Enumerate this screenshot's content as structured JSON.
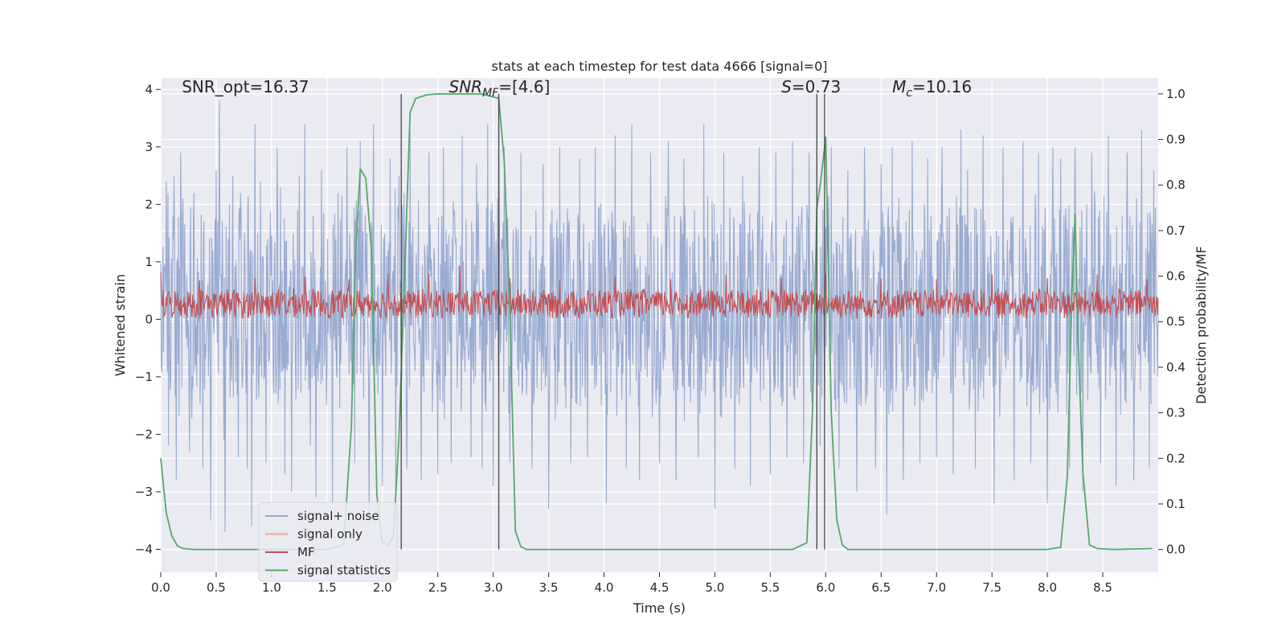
{
  "chart_data": {
    "type": "line",
    "title": "stats at each timestep for test data 4666 [signal=0]",
    "xlabel": "Time (s)",
    "ylabel_left": "Whitened strain",
    "ylabel_right": "Detection probability/MF",
    "xlim": [
      0.0,
      9.0
    ],
    "ylim_left": [
      -4.4,
      4.2
    ],
    "ylim_right": [
      -0.05,
      1.035
    ],
    "x_ticks": [
      0.0,
      0.5,
      1.0,
      1.5,
      2.0,
      2.5,
      3.0,
      3.5,
      4.0,
      4.5,
      5.0,
      5.5,
      6.0,
      6.5,
      7.0,
      7.5,
      8.0,
      8.5
    ],
    "x_tick_labels": [
      "0.0",
      "0.5",
      "1.0",
      "1.5",
      "2.0",
      "2.5",
      "3.0",
      "3.5",
      "4.0",
      "4.5",
      "5.0",
      "5.5",
      "6.0",
      "6.5",
      "7.0",
      "7.5",
      "8.0",
      "8.5"
    ],
    "y_left_ticks": [
      -4,
      -3,
      -2,
      -1,
      0,
      1,
      2,
      3,
      4
    ],
    "y_left_tick_labels": [
      "−4",
      "−3",
      "−2",
      "−1",
      "0",
      "1",
      "2",
      "3",
      "4"
    ],
    "y_right_ticks": [
      0.0,
      0.1,
      0.2,
      0.3,
      0.4,
      0.5,
      0.6,
      0.7,
      0.8,
      0.9,
      1.0
    ],
    "y_right_tick_labels": [
      "0.0",
      "0.1",
      "0.2",
      "0.3",
      "0.4",
      "0.5",
      "0.6",
      "0.7",
      "0.8",
      "0.9",
      "1.0"
    ],
    "annotations": [
      {
        "text": "SNR_opt=16.37",
        "x": 0.19,
        "y_right": 1.0
      },
      {
        "text": "SNR_MF=[4.6]",
        "x": 2.6,
        "y_right": 1.0
      },
      {
        "text": "S=0.73",
        "x": 5.6,
        "y_right": 1.0
      },
      {
        "text": "M_c=10.16",
        "x": 6.6,
        "y_right": 1.0
      }
    ],
    "vertical_lines": [
      2.17,
      3.05,
      5.92,
      5.99
    ],
    "vertical_line_range_right": [
      0.0,
      1.0
    ],
    "legend": {
      "location": "lower-left",
      "entries": [
        {
          "label": "signal+ noise",
          "color": "#98abd0"
        },
        {
          "label": "signal only",
          "color": "#f0a98c"
        },
        {
          "label": "MF",
          "color": "#c44e52"
        },
        {
          "label": "signal statistics",
          "color": "#55a868"
        }
      ]
    },
    "series": [
      {
        "name": "signal+ noise",
        "axis": "left",
        "kind": "noise-band",
        "color": "#98abd0",
        "x_range": [
          0.0,
          9.0
        ],
        "typical_range": [
          -1.8,
          2.3
        ],
        "peaks_max": [
          {
            "x": 0.05,
            "y": 2.4
          },
          {
            "x": 0.07,
            "y": -2.2
          },
          {
            "x": 0.12,
            "y": 2.5
          },
          {
            "x": 0.14,
            "y": -2.8
          },
          {
            "x": 0.18,
            "y": 2.9
          },
          {
            "x": 0.2,
            "y": 2.1
          },
          {
            "x": 0.26,
            "y": -2.3
          },
          {
            "x": 0.3,
            "y": 2.2
          },
          {
            "x": 0.38,
            "y": -2.6
          },
          {
            "x": 0.45,
            "y": -3.5
          },
          {
            "x": 0.5,
            "y": 2.6
          },
          {
            "x": 0.53,
            "y": 3.8
          },
          {
            "x": 0.57,
            "y": -2.1
          },
          {
            "x": 0.58,
            "y": -3.7
          },
          {
            "x": 0.65,
            "y": 2.5
          },
          {
            "x": 0.7,
            "y": -2.4
          },
          {
            "x": 0.72,
            "y": 2.2
          },
          {
            "x": 0.78,
            "y": -2.6
          },
          {
            "x": 0.82,
            "y": -3.6
          },
          {
            "x": 0.85,
            "y": 3.4
          },
          {
            "x": 0.9,
            "y": 2.4
          },
          {
            "x": 0.95,
            "y": -2.5
          },
          {
            "x": 1.05,
            "y": 3.0
          },
          {
            "x": 1.08,
            "y": 2.3
          },
          {
            "x": 1.12,
            "y": -2.7
          },
          {
            "x": 1.18,
            "y": -3.0
          },
          {
            "x": 1.25,
            "y": 2.5
          },
          {
            "x": 1.3,
            "y": 3.4
          },
          {
            "x": 1.35,
            "y": -2.2
          },
          {
            "x": 1.4,
            "y": -3.1
          },
          {
            "x": 1.45,
            "y": 2.6
          },
          {
            "x": 1.55,
            "y": -3.2
          },
          {
            "x": 1.6,
            "y": 2.2
          },
          {
            "x": 1.68,
            "y": 3.0
          },
          {
            "x": 1.75,
            "y": -2.5
          },
          {
            "x": 1.8,
            "y": 3.1
          },
          {
            "x": 1.88,
            "y": -3.5
          },
          {
            "x": 1.92,
            "y": 3.4
          },
          {
            "x": 2.0,
            "y": -2.9
          },
          {
            "x": 2.07,
            "y": 2.8
          },
          {
            "x": 2.12,
            "y": -3.4
          },
          {
            "x": 2.15,
            "y": 2.5
          },
          {
            "x": 2.22,
            "y": -2.6
          },
          {
            "x": 2.25,
            "y": 3.3
          },
          {
            "x": 2.35,
            "y": -2.8
          },
          {
            "x": 2.42,
            "y": 2.9
          },
          {
            "x": 2.5,
            "y": -2.7
          },
          {
            "x": 2.55,
            "y": 3.0
          },
          {
            "x": 2.62,
            "y": -2.5
          },
          {
            "x": 2.72,
            "y": 3.2
          },
          {
            "x": 2.8,
            "y": -2.4
          },
          {
            "x": 2.85,
            "y": 2.7
          },
          {
            "x": 2.9,
            "y": -2.6
          },
          {
            "x": 2.95,
            "y": 3.4
          },
          {
            "x": 3.0,
            "y": -2.9
          },
          {
            "x": 3.05,
            "y": 3.2
          },
          {
            "x": 3.1,
            "y": 3.0
          },
          {
            "x": 3.15,
            "y": -2.5
          },
          {
            "x": 3.25,
            "y": 2.9
          },
          {
            "x": 3.35,
            "y": -2.6
          },
          {
            "x": 3.45,
            "y": 2.7
          },
          {
            "x": 3.5,
            "y": -3.3
          },
          {
            "x": 3.6,
            "y": 3.0
          },
          {
            "x": 3.7,
            "y": -2.5
          },
          {
            "x": 3.78,
            "y": 2.8
          },
          {
            "x": 3.85,
            "y": -2.4
          },
          {
            "x": 3.92,
            "y": 3.0
          },
          {
            "x": 4.02,
            "y": -3.2
          },
          {
            "x": 4.1,
            "y": 3.2
          },
          {
            "x": 4.2,
            "y": -2.6
          },
          {
            "x": 4.25,
            "y": 3.4
          },
          {
            "x": 4.32,
            "y": -2.8
          },
          {
            "x": 4.42,
            "y": 2.9
          },
          {
            "x": 4.5,
            "y": -2.5
          },
          {
            "x": 4.58,
            "y": 3.1
          },
          {
            "x": 4.65,
            "y": -2.8
          },
          {
            "x": 4.72,
            "y": 2.8
          },
          {
            "x": 4.85,
            "y": -2.4
          },
          {
            "x": 4.9,
            "y": 3.4
          },
          {
            "x": 5.0,
            "y": -3.3
          },
          {
            "x": 5.08,
            "y": 2.9
          },
          {
            "x": 5.18,
            "y": -2.6
          },
          {
            "x": 5.25,
            "y": 2.5
          },
          {
            "x": 5.32,
            "y": -2.9
          },
          {
            "x": 5.4,
            "y": 3.0
          },
          {
            "x": 5.5,
            "y": -2.7
          },
          {
            "x": 5.55,
            "y": 2.9
          },
          {
            "x": 5.65,
            "y": -2.4
          },
          {
            "x": 5.7,
            "y": 3.1
          },
          {
            "x": 5.8,
            "y": -2.5
          },
          {
            "x": 5.85,
            "y": 2.9
          },
          {
            "x": 5.95,
            "y": -2.2
          },
          {
            "x": 6.05,
            "y": 3.0
          },
          {
            "x": 6.12,
            "y": -2.6
          },
          {
            "x": 6.2,
            "y": 2.6
          },
          {
            "x": 6.28,
            "y": -3.0
          },
          {
            "x": 6.35,
            "y": 3.0
          },
          {
            "x": 6.45,
            "y": -2.6
          },
          {
            "x": 6.5,
            "y": 2.7
          },
          {
            "x": 6.55,
            "y": -3.4
          },
          {
            "x": 6.6,
            "y": 3.0
          },
          {
            "x": 6.7,
            "y": -2.8
          },
          {
            "x": 6.78,
            "y": 3.1
          },
          {
            "x": 6.85,
            "y": -2.5
          },
          {
            "x": 6.92,
            "y": 2.8
          },
          {
            "x": 7.0,
            "y": -2.4
          },
          {
            "x": 7.05,
            "y": 3.0
          },
          {
            "x": 7.15,
            "y": -2.7
          },
          {
            "x": 7.22,
            "y": 3.3
          },
          {
            "x": 7.28,
            "y": 2.6
          },
          {
            "x": 7.35,
            "y": -2.6
          },
          {
            "x": 7.42,
            "y": 3.2
          },
          {
            "x": 7.52,
            "y": -3.2
          },
          {
            "x": 7.6,
            "y": 3.0
          },
          {
            "x": 7.7,
            "y": -2.8
          },
          {
            "x": 7.78,
            "y": 3.1
          },
          {
            "x": 7.85,
            "y": -2.5
          },
          {
            "x": 7.92,
            "y": 2.9
          },
          {
            "x": 8.0,
            "y": -3.2
          },
          {
            "x": 8.05,
            "y": 3.0
          },
          {
            "x": 8.12,
            "y": 2.8
          },
          {
            "x": 8.2,
            "y": -2.6
          },
          {
            "x": 8.25,
            "y": 3.0
          },
          {
            "x": 8.32,
            "y": -3.0
          },
          {
            "x": 8.4,
            "y": 2.9
          },
          {
            "x": 8.48,
            "y": -2.5
          },
          {
            "x": 8.55,
            "y": 3.2
          },
          {
            "x": 8.62,
            "y": -2.9
          },
          {
            "x": 8.72,
            "y": 2.9
          },
          {
            "x": 8.78,
            "y": -2.8
          },
          {
            "x": 8.85,
            "y": 3.3
          },
          {
            "x": 8.92,
            "y": -2.6
          },
          {
            "x": 8.96,
            "y": 2.6
          }
        ]
      },
      {
        "name": "MF",
        "axis": "left",
        "kind": "noise-band",
        "color": "#c44e52",
        "x_range": [
          0.0,
          9.0
        ],
        "typical_range": [
          0.0,
          0.55
        ],
        "peaks_max": [
          {
            "x": 0.0,
            "y": 0.82
          },
          {
            "x": 0.35,
            "y": 0.68
          },
          {
            "x": 0.85,
            "y": 0.72
          },
          {
            "x": 1.3,
            "y": 0.75
          },
          {
            "x": 1.7,
            "y": 0.7
          },
          {
            "x": 2.05,
            "y": 0.8
          },
          {
            "x": 2.42,
            "y": 0.8
          },
          {
            "x": 2.7,
            "y": 0.93
          },
          {
            "x": 3.15,
            "y": 0.72
          },
          {
            "x": 3.6,
            "y": 0.68
          },
          {
            "x": 4.1,
            "y": 0.75
          },
          {
            "x": 4.6,
            "y": 0.7
          },
          {
            "x": 5.1,
            "y": 0.78
          },
          {
            "x": 5.6,
            "y": 0.72
          },
          {
            "x": 6.0,
            "y": 0.8
          },
          {
            "x": 6.5,
            "y": 0.72
          },
          {
            "x": 7.0,
            "y": 0.7
          },
          {
            "x": 7.5,
            "y": 0.78
          },
          {
            "x": 8.0,
            "y": 0.72
          },
          {
            "x": 8.45,
            "y": 0.78
          },
          {
            "x": 8.9,
            "y": 0.7
          }
        ]
      },
      {
        "name": "signal statistics",
        "axis": "right",
        "kind": "line",
        "color": "#55a868",
        "x": [
          0.0,
          0.05,
          0.1,
          0.15,
          0.2,
          0.3,
          1.0,
          1.5,
          1.65,
          1.72,
          1.76,
          1.8,
          1.85,
          1.9,
          1.95,
          2.0,
          2.05,
          2.1,
          2.15,
          2.2,
          2.25,
          2.3,
          2.4,
          2.5,
          2.7,
          2.9,
          3.05,
          3.1,
          3.15,
          3.2,
          3.25,
          3.3,
          3.4,
          4.0,
          5.0,
          5.7,
          5.83,
          5.88,
          5.92,
          5.95,
          6.0,
          6.05,
          6.1,
          6.15,
          6.2,
          7.0,
          8.0,
          8.12,
          8.18,
          8.22,
          8.25,
          8.28,
          8.32,
          8.38,
          8.45,
          8.6,
          8.95
        ],
        "y": [
          0.2,
          0.08,
          0.03,
          0.008,
          0.002,
          0.0,
          0.0,
          0.0,
          0.01,
          0.27,
          0.66,
          0.835,
          0.815,
          0.66,
          0.12,
          0.015,
          0.01,
          0.03,
          0.25,
          0.6,
          0.96,
          0.99,
          0.998,
          1.0,
          1.0,
          1.0,
          0.99,
          0.85,
          0.52,
          0.04,
          0.006,
          0.0,
          0.0,
          0.0,
          0.0,
          0.0,
          0.015,
          0.3,
          0.75,
          0.8,
          0.905,
          0.3,
          0.065,
          0.01,
          0.0,
          0.0,
          0.0,
          0.005,
          0.16,
          0.55,
          0.735,
          0.44,
          0.17,
          0.01,
          0.002,
          0.0,
          0.002
        ]
      },
      {
        "name": "signal only",
        "axis": "left",
        "kind": "line",
        "color": "#f0a98c",
        "x": [],
        "y": []
      }
    ]
  }
}
